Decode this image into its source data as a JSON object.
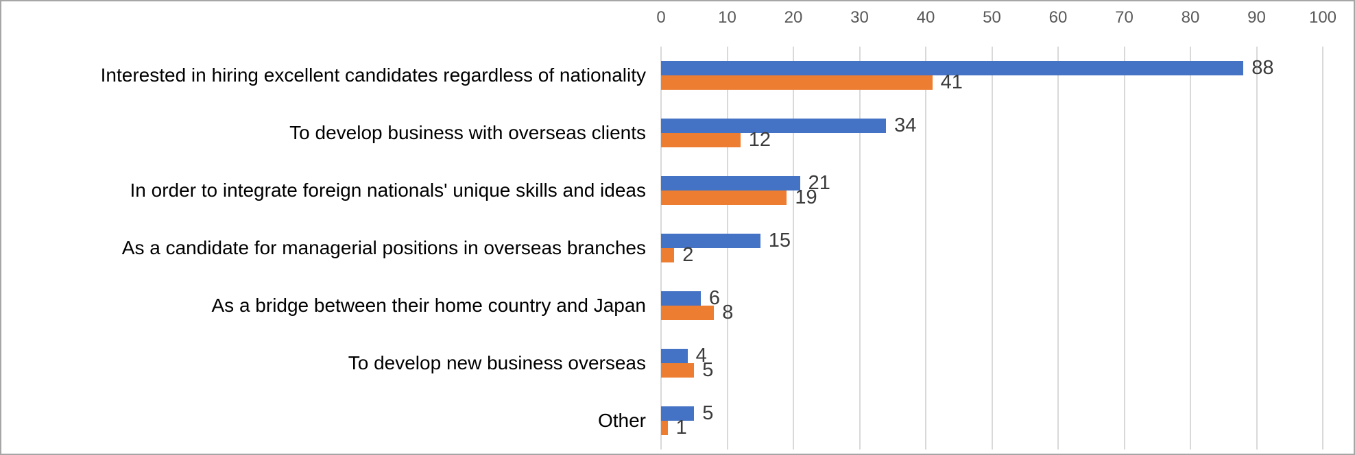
{
  "chart_data": {
    "type": "bar",
    "orientation": "horizontal",
    "title": "",
    "categories": [
      "Interested in hiring excellent candidates regardless of nationality",
      "To develop business with overseas clients",
      "In order to integrate foreign nationals' unique skills and ideas",
      "As a candidate for managerial positions in overseas branches",
      "As a bridge between their home country and Japan",
      "To develop new business overseas",
      "Other"
    ],
    "series": [
      {
        "name": "series-1-blue",
        "color": "#4472C4",
        "values": [
          88,
          34,
          21,
          15,
          6,
          4,
          5
        ]
      },
      {
        "name": "series-2-orange",
        "color": "#ED7D31",
        "values": [
          41,
          12,
          19,
          2,
          8,
          5,
          1
        ]
      }
    ],
    "value_labels": {
      "show": true,
      "position": "outside-end",
      "color": "#3b3b3b"
    },
    "x_axis": {
      "position": "top",
      "range": [
        0,
        100
      ],
      "tick_interval": 10,
      "tick_labels": [
        "0",
        "10",
        "20",
        "30",
        "40",
        "50",
        "60",
        "70",
        "80",
        "90",
        "100"
      ],
      "tick_color": "#595959"
    },
    "grid": {
      "show": true,
      "color": "#D9D9D9"
    },
    "legend": {
      "show": false
    }
  },
  "canvas": {
    "background": "#FFFFFF",
    "border_color": "#A6A6A6",
    "category_text_color": "#000000"
  }
}
